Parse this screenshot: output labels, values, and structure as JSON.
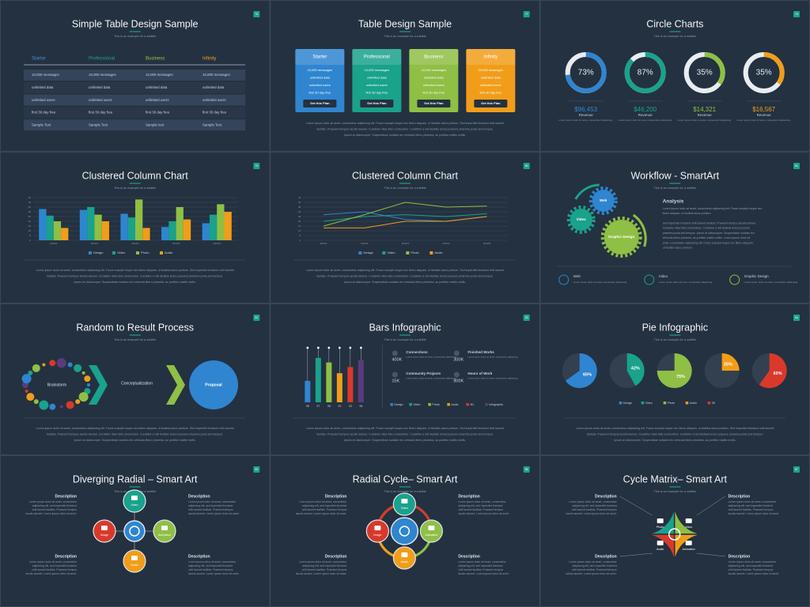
{
  "slides": [
    {
      "type": "table",
      "title": "Simple Table Design Sample",
      "subtitle": "This is an example for a subtitle",
      "badge": "76",
      "table": {
        "headers": [
          "Starter",
          "Professional",
          "Business",
          "Infinity"
        ],
        "header_colors": [
          "#3d8fd6",
          "#1aa58f",
          "#9cc44b",
          "#f0a11c"
        ],
        "rows": [
          [
            "10,000 messages",
            "10,000 messages",
            "10,000 messages",
            "10,000 messages"
          ],
          [
            "unlimited data",
            "unlimited data",
            "unlimited data",
            "unlimited data"
          ],
          [
            "unlimited users",
            "unlimited users",
            "unlimited users",
            "unlimited users"
          ],
          [
            "first 30 day free",
            "first 30 day free",
            "first 30 day free",
            "first 30 day free"
          ],
          [
            "Sample Text",
            "Sample Text",
            "Sample text",
            "Sample Text"
          ]
        ]
      }
    },
    {
      "type": "pricing",
      "title": "Table Design Sample",
      "subtitle": "This is an example for a subtitle",
      "badge": "77",
      "plans": [
        {
          "name": "Starter",
          "color": "#2f85d0",
          "features": [
            "10,000 messages",
            "unlimited data",
            "unlimited users",
            "first 30 day free"
          ],
          "button": "Get this Plan"
        },
        {
          "name": "Professional",
          "color": "#19a28c",
          "features": [
            "10,000 messages",
            "unlimited data",
            "unlimited users",
            "first 30 day free"
          ],
          "button": "Get this Plan"
        },
        {
          "name": "Business",
          "color": "#8fbf45",
          "features": [
            "10,000 messages",
            "unlimited data",
            "unlimited users",
            "first 30 day free"
          ],
          "button": "Get this Plan"
        },
        {
          "name": "Infinity",
          "color": "#f19d1a",
          "features": [
            "10,000 messages",
            "unlimited data",
            "unlimited users",
            "first 30 day free"
          ],
          "button": "Get this Plan"
        }
      ],
      "body": [
        "Lorem ipsum dolor sit amet, consectetur adipiscing elit. Fusce suscipit neque nec libero aliquam, ut facilisis lacus pretium. Sed imperdiet tincidunt velit laoreet",
        "facilisis. Praesent tempus iaculis laoreet. Curabitur vitae felis consectetur. Curabitur a nisl facilisis lectus posuere pharetra porta sed tempus.",
        "Ipsum at ullamcorper. Suspendisse sodales leo vehicula libero pharetra, ac porttitor mattis mollis."
      ]
    },
    {
      "type": "donuts",
      "title": "Circle Charts",
      "subtitle": "This is an example for a subtitle",
      "badge": "78",
      "values": [
        73,
        87,
        35,
        35
      ],
      "value_labels": [
        "73%",
        "87%",
        "35%",
        "35%"
      ],
      "colors": [
        "#2f85d0",
        "#19a28c",
        "#8fbf45",
        "#f19d1a"
      ],
      "amounts": [
        "$96,453",
        "$46,200",
        "$14,321",
        "$16,567"
      ],
      "captions": [
        "Revenue",
        "Revenue",
        "Revenue",
        "Revenue"
      ],
      "notes": [
        "Lorem ipsum dolor sit amet, consectetur adipiscing.",
        "Lorem ipsum dolor sit amet, consectetur adipiscing.",
        "Lorem ipsum dolor sit amet, consectetur adipiscing.",
        "Lorem ipsum dolor sit amet, consectetur adipiscing."
      ]
    },
    {
      "type": "chart",
      "title": "Clustered Column Chart",
      "subtitle": "This is an example for a subtitle",
      "badge": "79",
      "chart_data": {
        "type": "bar",
        "categories": [
          "2014/1",
          "2014/2",
          "2014/3",
          "2014/4",
          "2014/5"
        ],
        "ylim": [
          0,
          45
        ],
        "yticks": [
          0,
          5,
          10,
          15,
          20,
          25,
          30,
          35,
          40,
          45
        ],
        "series": [
          {
            "name": "Design",
            "color": "#2f85d0",
            "values": [
              33,
              32,
              28,
              14,
              18
            ]
          },
          {
            "name": "Video",
            "color": "#19a28c",
            "values": [
              26,
              35,
              24,
              20,
              27
            ]
          },
          {
            "name": "Photo",
            "color": "#8fbf45",
            "values": [
              20,
              27,
              43,
              35,
              38
            ]
          },
          {
            "name": "Audio",
            "color": "#f19d1a",
            "values": [
              13,
              20,
              13,
              22,
              30
            ]
          }
        ]
      },
      "body": [
        "Lorem ipsum dolor sit amet, consectetur adipiscing elit. Fusce suscipit neque nec libero aliquam, ut facilisis lacus pretium. Sed imperdiet tincidunt velit laoreet",
        "facilisis. Praesent tempus iaculis laoreet. Curabitur vitae felis consectetur. Curabitur a nisl facilisis lectus posuere pharetra porta sed tempus.",
        "Ipsum at ullamcorper. Suspendisse sodales leo vehicula libero pharetra, ac porttitor mattis mollis."
      ]
    },
    {
      "type": "chart",
      "title": "Clustered Column Chart",
      "subtitle": "This is an example for a subtitle",
      "badge": "80",
      "chart_data": {
        "type": "line",
        "categories": [
          "2014/1",
          "2014/2",
          "2014/3",
          "2014/4",
          "2014/5"
        ],
        "ylim": [
          0,
          45
        ],
        "yticks": [
          0,
          5,
          10,
          15,
          20,
          25,
          30,
          35,
          40,
          45
        ],
        "series": [
          {
            "name": "Design",
            "color": "#2f85d0",
            "values": [
              27,
              30,
              22,
              20,
              25
            ]
          },
          {
            "name": "Video",
            "color": "#19a28c",
            "values": [
              20,
              25,
              27,
              25,
              28
            ]
          },
          {
            "name": "Photo",
            "color": "#8fbf45",
            "values": [
              15,
              27,
              40,
              35,
              36
            ]
          },
          {
            "name": "Audio",
            "color": "#f19d1a",
            "values": [
              13,
              13,
              20,
              20,
              25
            ]
          }
        ]
      },
      "body": [
        "Lorem ipsum dolor sit amet, consectetur adipiscing elit. Fusce suscipit neque nec libero aliquam, ut facilisis lacus pretium. Sed imperdiet tincidunt velit laoreet",
        "facilisis. Praesent tempus iaculis laoreet. Curabitur vitae felis consectetur. Curabitur a nisl facilisis lectus posuere pharetra porta sed tempus.",
        "Ipsum at ullamcorper. Suspendisse sodales leo vehicula libero pharetra, ac porttitor mattis mollis."
      ]
    },
    {
      "type": "workflow",
      "title": "Workflow - SmartArt",
      "subtitle": "This is an example for a subtitle",
      "badge": "81",
      "gears": [
        {
          "label": "Web",
          "color": "#2f85d0"
        },
        {
          "label": "Video",
          "color": "#19a28c"
        },
        {
          "label": "Graphic Design",
          "color": "#8fbf45"
        }
      ],
      "heading": "Analysis",
      "text": [
        "Lorem ipsum dolor sit amet, consectetur adipiscing elit. Fusce suscipit neque nec",
        "libero aliquam, ut facilisis lacus pretium.",
        "",
        "Sed imperdiet tincidunt velit laoreet facilisis. Praesent tempus iaculis laoreet.",
        "Curabitur vitae felis consectetur. Curabitur a nisl facilisis lectus posuere",
        "pharetra porta sed tempus. Ipsum at ullamcorper. Suspendisse sodales leo",
        "vehicula libero pharetra, ac porttitor mattis mollis. Lorem ipsum dolor sit",
        "amet, consectetur adipiscing elit. Fusce suscipit neque nec libero aliquam,",
        "ut facilisis lacus pretium."
      ],
      "items": [
        {
          "label": "Web",
          "note": "Lorem ipsum dolor sit amet, consectetur adipiscing."
        },
        {
          "label": "Video",
          "note": "Lorem ipsum dolor sit amet, consectetur adipiscing."
        },
        {
          "label": "Graphic Design",
          "note": "Lorem ipsum dolor sit amet, consectetur adipiscing."
        }
      ]
    },
    {
      "type": "process",
      "title": "Random to Result Process",
      "subtitle": "This is an example for a subtitle",
      "badge": "82",
      "steps": [
        "Brainstorm",
        "Conceptualization",
        "Proposal"
      ],
      "body": [
        "Lorem ipsum dolor sit amet, consectetur adipiscing elit. Fusce suscipit neque nec libero aliquam, ut facilisis lacus pretium. Sed imperdiet tincidunt velit laoreet",
        "facilisis. Praesent tempus iaculis laoreet. Curabitur vitae felis consectetur. Curabitur a nisl facilisis lectus posuere pharetra porta sed tempus.",
        "Ipsum at ullamcorper. Suspendisse sodales leo vehicula libero pharetra, ac porttitor mattis mollis."
      ]
    },
    {
      "type": "bars",
      "title": "Bars Infographic",
      "subtitle": "This is an example for a subtitle",
      "badge": "83",
      "chart_data": {
        "type": "bar",
        "categories": [
          "98",
          "97",
          "98",
          "03",
          "03",
          "98"
        ],
        "ylim": [
          0,
          65
        ],
        "series": [
          {
            "name": "Design",
            "color": "#2f85d0"
          },
          {
            "name": "Video",
            "color": "#19a28c"
          },
          {
            "name": "Photo",
            "color": "#8fbf45"
          },
          {
            "name": "Audio",
            "color": "#f19d1a"
          },
          {
            "name": "3D",
            "color": "#d9392b"
          },
          {
            "name": "Infographic",
            "color": "#5c3b7d"
          }
        ],
        "values": [
          28,
          58,
          52,
          38,
          46,
          55
        ]
      },
      "stats": [
        {
          "value": "400K",
          "title": "Connections",
          "note": "Lorem ipsum dolor sit amet, consectetur adipiscing."
        },
        {
          "value": "15K",
          "title": "Community Projects",
          "note": "Lorem ipsum dolor sit amet, consectetur adipiscing."
        },
        {
          "value": "300K",
          "title": "Finished Works",
          "note": "Lorem ipsum dolor sit amet, consectetur adipiscing."
        },
        {
          "value": "800K",
          "title": "Hours of Work",
          "note": "Lorem ipsum dolor sit amet, consectetur adipiscing."
        }
      ],
      "body": [
        "Lorem ipsum dolor sit amet, consectetur adipiscing elit. Fusce suscipit neque nec libero aliquam, ut facilisis lacus pretium. Sed imperdiet tincidunt velit laoreet",
        "facilisis. Praesent tempus iaculis laoreet. Curabitur vitae felis consectetur. Curabitur a nisl facilisis lectus posuere pharetra porta sed tempus.",
        "Ipsum at ullamcorper. Suspendisse sodales leo vehicula libero pharetra, ac porttitor mattis mollis."
      ]
    },
    {
      "type": "pies",
      "title": "Pie Infographic",
      "subtitle": "This is an example for a subtitle",
      "badge": "84",
      "chart_data": {
        "type": "pie",
        "values": [
          65,
          42,
          75,
          25,
          60
        ],
        "value_labels": [
          "65%",
          "42%",
          "75%",
          "25%",
          "60%"
        ],
        "series": [
          {
            "name": "Design",
            "color": "#2f85d0"
          },
          {
            "name": "Video",
            "color": "#19a28c"
          },
          {
            "name": "Photo",
            "color": "#8fbf45"
          },
          {
            "name": "Audio",
            "color": "#f19d1a"
          },
          {
            "name": "3D",
            "color": "#d9392b"
          }
        ]
      },
      "body": [
        "Lorem ipsum dolor sit amet, consectetur adipiscing elit. Fusce suscipit neque nec libero aliquam, ut facilisis lacus pretium. Sed imperdiet tincidunt velit laoreet",
        "facilisis. Praesent tempus iaculis laoreet. Curabitur vitae felis consectetur. Curabitur a nisl facilisis lectus posuere pharetra porta sed tempus.",
        "Ipsum at ullamcorper. Suspendisse sodales leo vehicula libero pharetra, ac porttitor mattis mollis."
      ]
    },
    {
      "type": "radial",
      "layout": "diverging",
      "title": "Diverging Radial – Smart Art",
      "subtitle": "This is an example for a subtitle",
      "badge": "85",
      "nodes": [
        {
          "label": "Video",
          "color": "#19a28c"
        },
        {
          "label": "Animation",
          "color": "#8fbf45"
        },
        {
          "label": "Audio",
          "color": "#f19d1a"
        },
        {
          "label": "Image",
          "color": "#d9392b"
        }
      ],
      "descriptions": [
        {
          "title": "Description",
          "lines": [
            "Lorem ipsum dolor sit amet, consectetur",
            "adipiscing elit, sed imperdiet tincidunt",
            "velit laoreet facilisis. Praesent tempus",
            "iaculis laoreet. Lorem ipsum dolor sit amet."
          ]
        },
        {
          "title": "Description",
          "lines": [
            "Lorem ipsum dolor sit amet, consectetur",
            "adipiscing elit, sed imperdiet tincidunt",
            "velit laoreet facilisis. Praesent tempus",
            "iaculis laoreet. Lorem ipsum dolor sit amet."
          ]
        },
        {
          "title": "Description",
          "lines": [
            "Lorem ipsum dolor sit amet, consectetur",
            "adipiscing elit, sed imperdiet tincidunt",
            "velit laoreet facilisis. Praesent tempus",
            "iaculis laoreet. Lorem ipsum dolor sit amet."
          ]
        },
        {
          "title": "Description",
          "lines": [
            "Lorem ipsum dolor sit amet, consectetur",
            "adipiscing elit, sed imperdiet tincidunt",
            "velit laoreet facilisis. Praesent tempus",
            "iaculis laoreet. Lorem ipsum dolor sit amet."
          ]
        }
      ]
    },
    {
      "type": "radial",
      "layout": "cycle",
      "title": "Radial Cycle– Smart Art",
      "subtitle": "This is an example for a subtitle",
      "badge": "86",
      "nodes": [
        {
          "label": "Video",
          "color": "#19a28c"
        },
        {
          "label": "Animation",
          "color": "#8fbf45"
        },
        {
          "label": "Audio",
          "color": "#f19d1a"
        },
        {
          "label": "Image",
          "color": "#d9392b"
        }
      ],
      "descriptions": [
        {
          "title": "Description",
          "lines": [
            "Lorem ipsum dolor sit amet, consectetur",
            "adipiscing elit, sed imperdiet tincidunt",
            "velit laoreet facilisis. Praesent tempus",
            "iaculis laoreet. Lorem ipsum dolor sit amet."
          ]
        },
        {
          "title": "Description",
          "lines": [
            "Lorem ipsum dolor sit amet, consectetur",
            "adipiscing elit, sed imperdiet tincidunt",
            "velit laoreet facilisis. Praesent tempus",
            "iaculis laoreet. Lorem ipsum dolor sit amet."
          ]
        },
        {
          "title": "Description",
          "lines": [
            "Lorem ipsum dolor sit amet, consectetur",
            "adipiscing elit, sed imperdiet tincidunt",
            "velit laoreet facilisis. Praesent tempus",
            "iaculis laoreet. Lorem ipsum dolor sit amet."
          ]
        },
        {
          "title": "Description",
          "lines": [
            "Lorem ipsum dolor sit amet, consectetur",
            "adipiscing elit, sed imperdiet tincidunt",
            "velit laoreet facilisis. Praesent tempus",
            "iaculis laoreet. Lorem ipsum dolor sit amet."
          ]
        }
      ]
    },
    {
      "type": "radial",
      "layout": "matrix",
      "title": "Cycle Matrix– Smart Art",
      "subtitle": "This is an example for a subtitle",
      "badge": "87",
      "nodes": [
        {
          "label": "Photo",
          "color": "#19a28c"
        },
        {
          "label": "Video",
          "color": "#8fbf45"
        },
        {
          "label": "Animation",
          "color": "#f19d1a"
        },
        {
          "label": "Audio",
          "color": "#d9392b"
        }
      ],
      "descriptions": [
        {
          "title": "Description",
          "lines": [
            "Lorem ipsum dolor sit amet, consectetur",
            "adipiscing elit, sed imperdiet tincidunt",
            "velit laoreet facilisis. Praesent tempus",
            "iaculis laoreet. Lorem ipsum dolor sit amet."
          ]
        },
        {
          "title": "Description",
          "lines": [
            "Lorem ipsum dolor sit amet, consectetur",
            "adipiscing elit, sed imperdiet tincidunt",
            "velit laoreet facilisis. Praesent tempus",
            "iaculis laoreet. Lorem ipsum dolor sit amet."
          ]
        },
        {
          "title": "Description",
          "lines": [
            "Lorem ipsum dolor sit amet, consectetur",
            "adipiscing elit, sed imperdiet tincidunt",
            "velit laoreet facilisis. Praesent tempus",
            "iaculis laoreet. Lorem ipsum dolor sit amet."
          ]
        },
        {
          "title": "Description",
          "lines": [
            "Lorem ipsum dolor sit amet, consectetur",
            "adipiscing elit, sed imperdiet tincidunt",
            "velit laoreet facilisis. Praesent tempus",
            "iaculis laoreet. Lorem ipsum dolor sit amet."
          ]
        }
      ]
    }
  ]
}
